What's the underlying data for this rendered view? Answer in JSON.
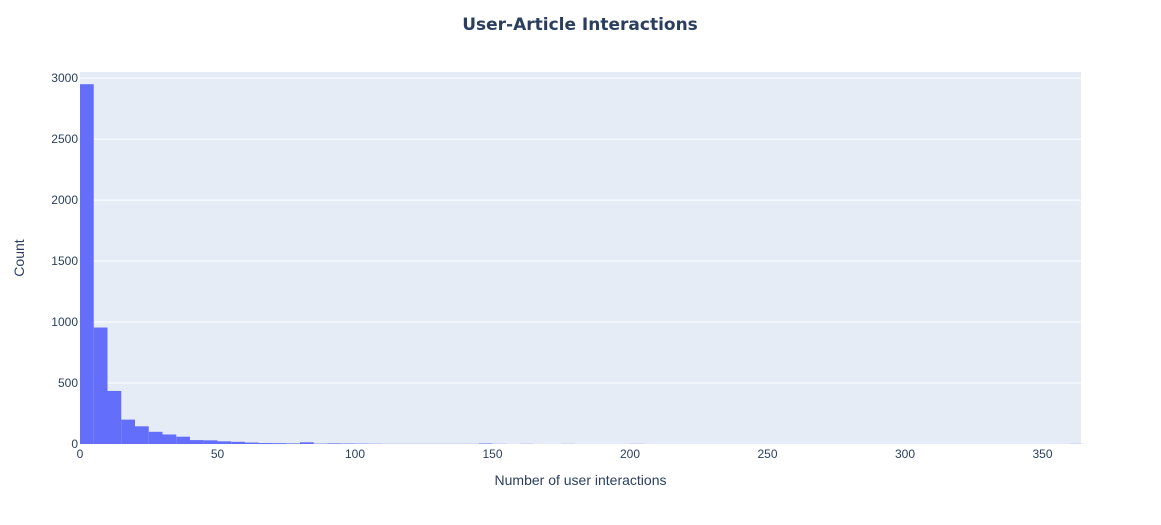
{
  "chart_data": {
    "type": "bar",
    "subtype": "histogram",
    "title": "User-Article Interactions",
    "xlabel": "Number of user interactions",
    "ylabel": "Count",
    "xlim": [
      0,
      364
    ],
    "ylim": [
      0,
      3050
    ],
    "bin_width": 5,
    "x_ticks": [
      0,
      50,
      100,
      150,
      200,
      250,
      300,
      350
    ],
    "x_tick_labels": [
      "0",
      "50",
      "100",
      "150",
      "200",
      "250",
      "300",
      "350"
    ],
    "y_ticks": [
      0,
      500,
      1000,
      1500,
      2000,
      2500,
      3000
    ],
    "y_tick_labels": [
      "0",
      "500",
      "1000",
      "1500",
      "2000",
      "2500",
      "3000"
    ],
    "grid": true,
    "legend": "none",
    "bins": [
      {
        "x0": 0,
        "x1": 5,
        "count": 2950
      },
      {
        "x0": 5,
        "x1": 10,
        "count": 955
      },
      {
        "x0": 10,
        "x1": 15,
        "count": 435
      },
      {
        "x0": 15,
        "x1": 20,
        "count": 200
      },
      {
        "x0": 20,
        "x1": 25,
        "count": 145
      },
      {
        "x0": 25,
        "x1": 30,
        "count": 100
      },
      {
        "x0": 30,
        "x1": 35,
        "count": 78
      },
      {
        "x0": 35,
        "x1": 40,
        "count": 60
      },
      {
        "x0": 40,
        "x1": 45,
        "count": 32
      },
      {
        "x0": 45,
        "x1": 50,
        "count": 30
      },
      {
        "x0": 50,
        "x1": 55,
        "count": 22
      },
      {
        "x0": 55,
        "x1": 60,
        "count": 18
      },
      {
        "x0": 60,
        "x1": 65,
        "count": 12
      },
      {
        "x0": 65,
        "x1": 70,
        "count": 8
      },
      {
        "x0": 70,
        "x1": 75,
        "count": 7
      },
      {
        "x0": 75,
        "x1": 80,
        "count": 5
      },
      {
        "x0": 80,
        "x1": 85,
        "count": 14
      },
      {
        "x0": 85,
        "x1": 90,
        "count": 3
      },
      {
        "x0": 90,
        "x1": 95,
        "count": 5
      },
      {
        "x0": 95,
        "x1": 100,
        "count": 4
      },
      {
        "x0": 100,
        "x1": 105,
        "count": 3
      },
      {
        "x0": 105,
        "x1": 110,
        "count": 2
      },
      {
        "x0": 110,
        "x1": 115,
        "count": 1
      },
      {
        "x0": 115,
        "x1": 120,
        "count": 1
      },
      {
        "x0": 120,
        "x1": 125,
        "count": 1
      },
      {
        "x0": 125,
        "x1": 130,
        "count": 1
      },
      {
        "x0": 130,
        "x1": 135,
        "count": 1
      },
      {
        "x0": 135,
        "x1": 140,
        "count": 1
      },
      {
        "x0": 140,
        "x1": 145,
        "count": 1
      },
      {
        "x0": 145,
        "x1": 150,
        "count": 4
      },
      {
        "x0": 150,
        "x1": 155,
        "count": 1
      },
      {
        "x0": 160,
        "x1": 165,
        "count": 1
      },
      {
        "x0": 175,
        "x1": 180,
        "count": 1
      },
      {
        "x0": 200,
        "x1": 205,
        "count": 1
      },
      {
        "x0": 360,
        "x1": 365,
        "count": 1
      }
    ]
  },
  "colors": {
    "bar": "#636efa",
    "plot_background": "#e5ecf6",
    "paper_background": "#ffffff",
    "grid": "#ffffff",
    "text": "#2a3f5f",
    "title": "#2a3f5f"
  }
}
